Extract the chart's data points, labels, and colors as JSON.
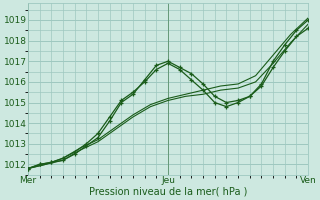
{
  "title": "",
  "xlabel": "Pression niveau de la mer( hPa )",
  "ylabel": "",
  "bg_color": "#cde8e0",
  "grid_color": "#9ec8c0",
  "line_color": "#1a5c1a",
  "xlim": [
    0,
    48
  ],
  "ylim": [
    1011.5,
    1019.8
  ],
  "yticks": [
    1012,
    1013,
    1014,
    1015,
    1016,
    1017,
    1018,
    1019
  ],
  "xtick_labels": [
    "Mer",
    "Jeu",
    "Ven"
  ],
  "xtick_positions": [
    0,
    24,
    48
  ],
  "lines": [
    {
      "x": [
        0,
        2,
        4,
        6,
        8,
        10,
        12,
        14,
        16,
        18,
        20,
        22,
        24,
        26,
        28,
        30,
        32,
        34,
        36,
        38,
        40,
        42,
        44,
        46,
        48
      ],
      "y": [
        1011.8,
        1012.0,
        1012.1,
        1012.2,
        1012.5,
        1012.9,
        1013.3,
        1014.1,
        1015.0,
        1015.4,
        1016.1,
        1016.8,
        1017.0,
        1016.7,
        1016.4,
        1015.9,
        1015.3,
        1015.0,
        1015.1,
        1015.3,
        1015.8,
        1016.7,
        1017.5,
        1018.2,
        1018.6
      ],
      "marker": true,
      "lw": 0.9
    },
    {
      "x": [
        0,
        2,
        4,
        6,
        8,
        10,
        12,
        14,
        16,
        18,
        20,
        22,
        24,
        26,
        28,
        30,
        32,
        34,
        36,
        38,
        40,
        42,
        44,
        46,
        48
      ],
      "y": [
        1011.8,
        1012.0,
        1012.1,
        1012.3,
        1012.6,
        1013.0,
        1013.5,
        1014.3,
        1015.1,
        1015.5,
        1016.0,
        1016.6,
        1016.9,
        1016.6,
        1016.1,
        1015.6,
        1015.0,
        1014.8,
        1015.0,
        1015.3,
        1015.9,
        1017.0,
        1017.8,
        1018.5,
        1019.0
      ],
      "marker": true,
      "lw": 0.9
    },
    {
      "x": [
        0,
        3,
        6,
        9,
        12,
        15,
        18,
        21,
        24,
        27,
        30,
        33,
        36,
        39,
        42,
        45,
        48
      ],
      "y": [
        1011.8,
        1012.0,
        1012.2,
        1012.7,
        1013.1,
        1013.7,
        1014.3,
        1014.8,
        1015.1,
        1015.3,
        1015.4,
        1015.6,
        1015.7,
        1016.0,
        1016.9,
        1017.9,
        1018.8
      ],
      "marker": false,
      "lw": 0.8
    },
    {
      "x": [
        0,
        3,
        6,
        9,
        12,
        15,
        18,
        21,
        24,
        27,
        30,
        33,
        36,
        39,
        42,
        45,
        48
      ],
      "y": [
        1011.8,
        1012.0,
        1012.3,
        1012.8,
        1013.2,
        1013.8,
        1014.4,
        1014.9,
        1015.2,
        1015.4,
        1015.6,
        1015.8,
        1015.9,
        1016.3,
        1017.3,
        1018.3,
        1019.1
      ],
      "marker": false,
      "lw": 0.8
    }
  ],
  "xlabel_fontsize": 7,
  "tick_fontsize": 6.5
}
